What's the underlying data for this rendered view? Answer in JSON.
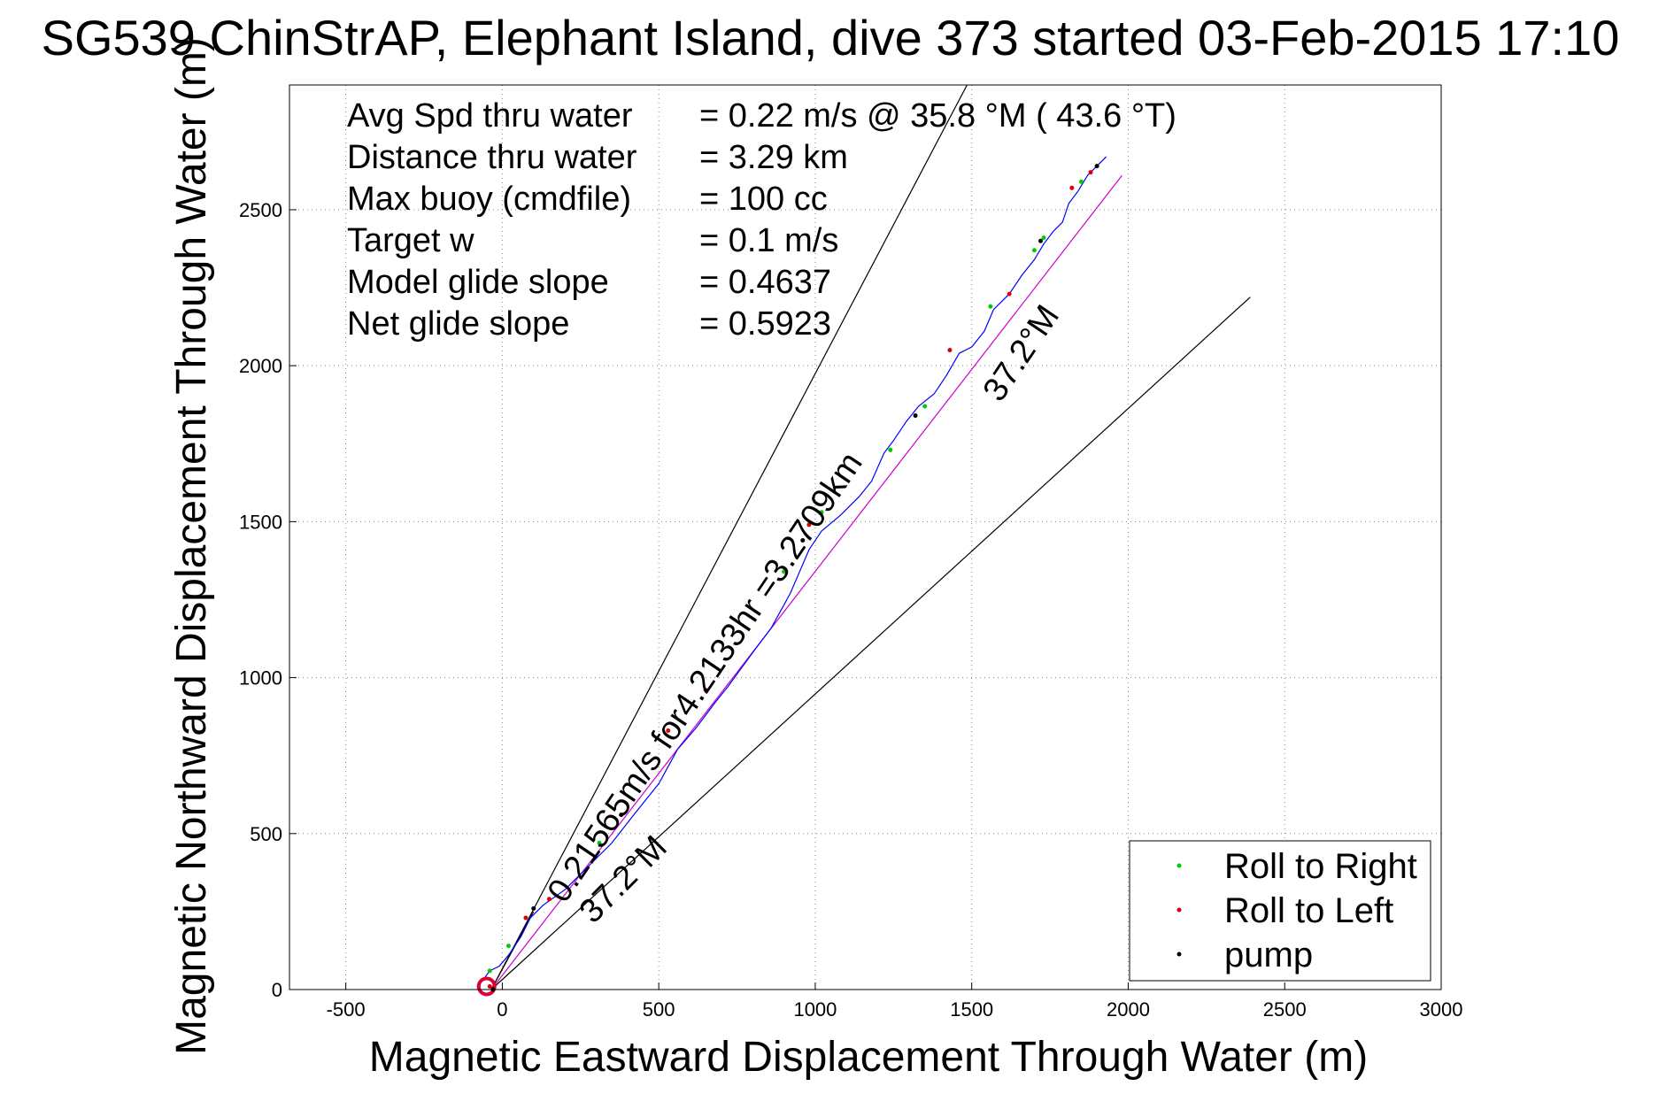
{
  "chart_data": {
    "type": "scatter",
    "title": "SG539 ChinStrAP, Elephant Island, dive 373 started 03-Feb-2015 17:10",
    "xlabel": "Magnetic Eastward Displacement Through Water (m)",
    "ylabel": "Magnetic Northward Displacement Through Water (m)",
    "xlim": [
      -680,
      3000
    ],
    "ylim": [
      0,
      2900
    ],
    "xticks": [
      "-500",
      "0",
      "500",
      "1000",
      "1500",
      "2000",
      "2500",
      "3000"
    ],
    "yticks": [
      "0",
      "500",
      "1000",
      "1500",
      "2000",
      "2500"
    ],
    "grid": true,
    "legend_position": "bottom-right",
    "stats": [
      {
        "label": "Avg Spd thru water",
        "value": "=  0.22 m/s @  35.8 °M ( 43.6 °T)"
      },
      {
        "label": "Distance thru water",
        "value": "=  3.29 km"
      },
      {
        "label": "Max buoy (cmdfile)",
        "value": "= 100 cc"
      },
      {
        "label": "Target w",
        "value": "= 0.1 m/s"
      },
      {
        "label": "Model glide slope",
        "value": "= 0.4637"
      },
      {
        "label": "Net glide slope",
        "value": "= 0.5923"
      }
    ],
    "annotations": {
      "track_summary": "0.21565m/s for4.2133hr =3.2709km",
      "heading_upper": "37.2°M",
      "heading_lower": "37.2°M"
    },
    "series": [
      {
        "name": "Roll to Right",
        "color": "#00cc00",
        "x": [
          -40,
          20,
          310,
          900,
          1020,
          1240,
          1350,
          1560,
          1700,
          1730,
          1850
        ],
        "y": [
          60,
          140,
          470,
          1340,
          1530,
          1730,
          1870,
          2190,
          2370,
          2410,
          2590
        ]
      },
      {
        "name": "Roll to Left",
        "color": "#dd0000",
        "x": [
          -40,
          75,
          150,
          530,
          650,
          980,
          1430,
          1620,
          1820,
          1880
        ],
        "y": [
          10,
          230,
          290,
          830,
          960,
          1490,
          2050,
          2230,
          2570,
          2620
        ]
      },
      {
        "name": "pump",
        "color": "#000000",
        "x": [
          -30,
          100,
          380,
          960,
          1320,
          1720,
          1900
        ],
        "y": [
          0,
          260,
          560,
          1440,
          1840,
          2400,
          2640
        ]
      }
    ],
    "track": {
      "name": "Track",
      "color": "#0000ff",
      "x": [
        -55,
        -40,
        -10,
        20,
        60,
        90,
        130,
        200,
        280,
        350,
        420,
        500,
        560,
        620,
        680,
        720,
        800,
        860,
        920,
        950,
        980,
        1020,
        1080,
        1140,
        1180,
        1220,
        1250,
        1290,
        1330,
        1380,
        1420,
        1460,
        1500,
        1540,
        1570,
        1620,
        1660,
        1700,
        1730,
        1760,
        1790,
        1810,
        1840,
        1870,
        1900,
        1930
      ],
      "y": [
        40,
        60,
        75,
        110,
        170,
        230,
        270,
        320,
        400,
        470,
        560,
        660,
        770,
        840,
        920,
        970,
        1080,
        1160,
        1270,
        1340,
        1410,
        1470,
        1520,
        1580,
        1630,
        1720,
        1760,
        1820,
        1870,
        1910,
        1970,
        2040,
        2060,
        2110,
        2180,
        2230,
        2290,
        2340,
        2390,
        2430,
        2460,
        2520,
        2560,
        2610,
        2640,
        2670
      ]
    },
    "reference_lines": [
      {
        "kind": "heading",
        "color": "#cc00cc",
        "x": [
          -35,
          1980
        ],
        "y": [
          0,
          2610
        ]
      },
      {
        "kind": "glide-bound",
        "color": "#000000",
        "x": [
          -35,
          1485
        ],
        "y": [
          0,
          2900
        ]
      },
      {
        "kind": "glide-bound",
        "color": "#000000",
        "x": [
          -35,
          2390
        ],
        "y": [
          0,
          2220
        ]
      },
      {
        "kind": "segment",
        "color": "#000000",
        "x": [
          -35,
          100
        ],
        "y": [
          0,
          250
        ]
      }
    ]
  }
}
